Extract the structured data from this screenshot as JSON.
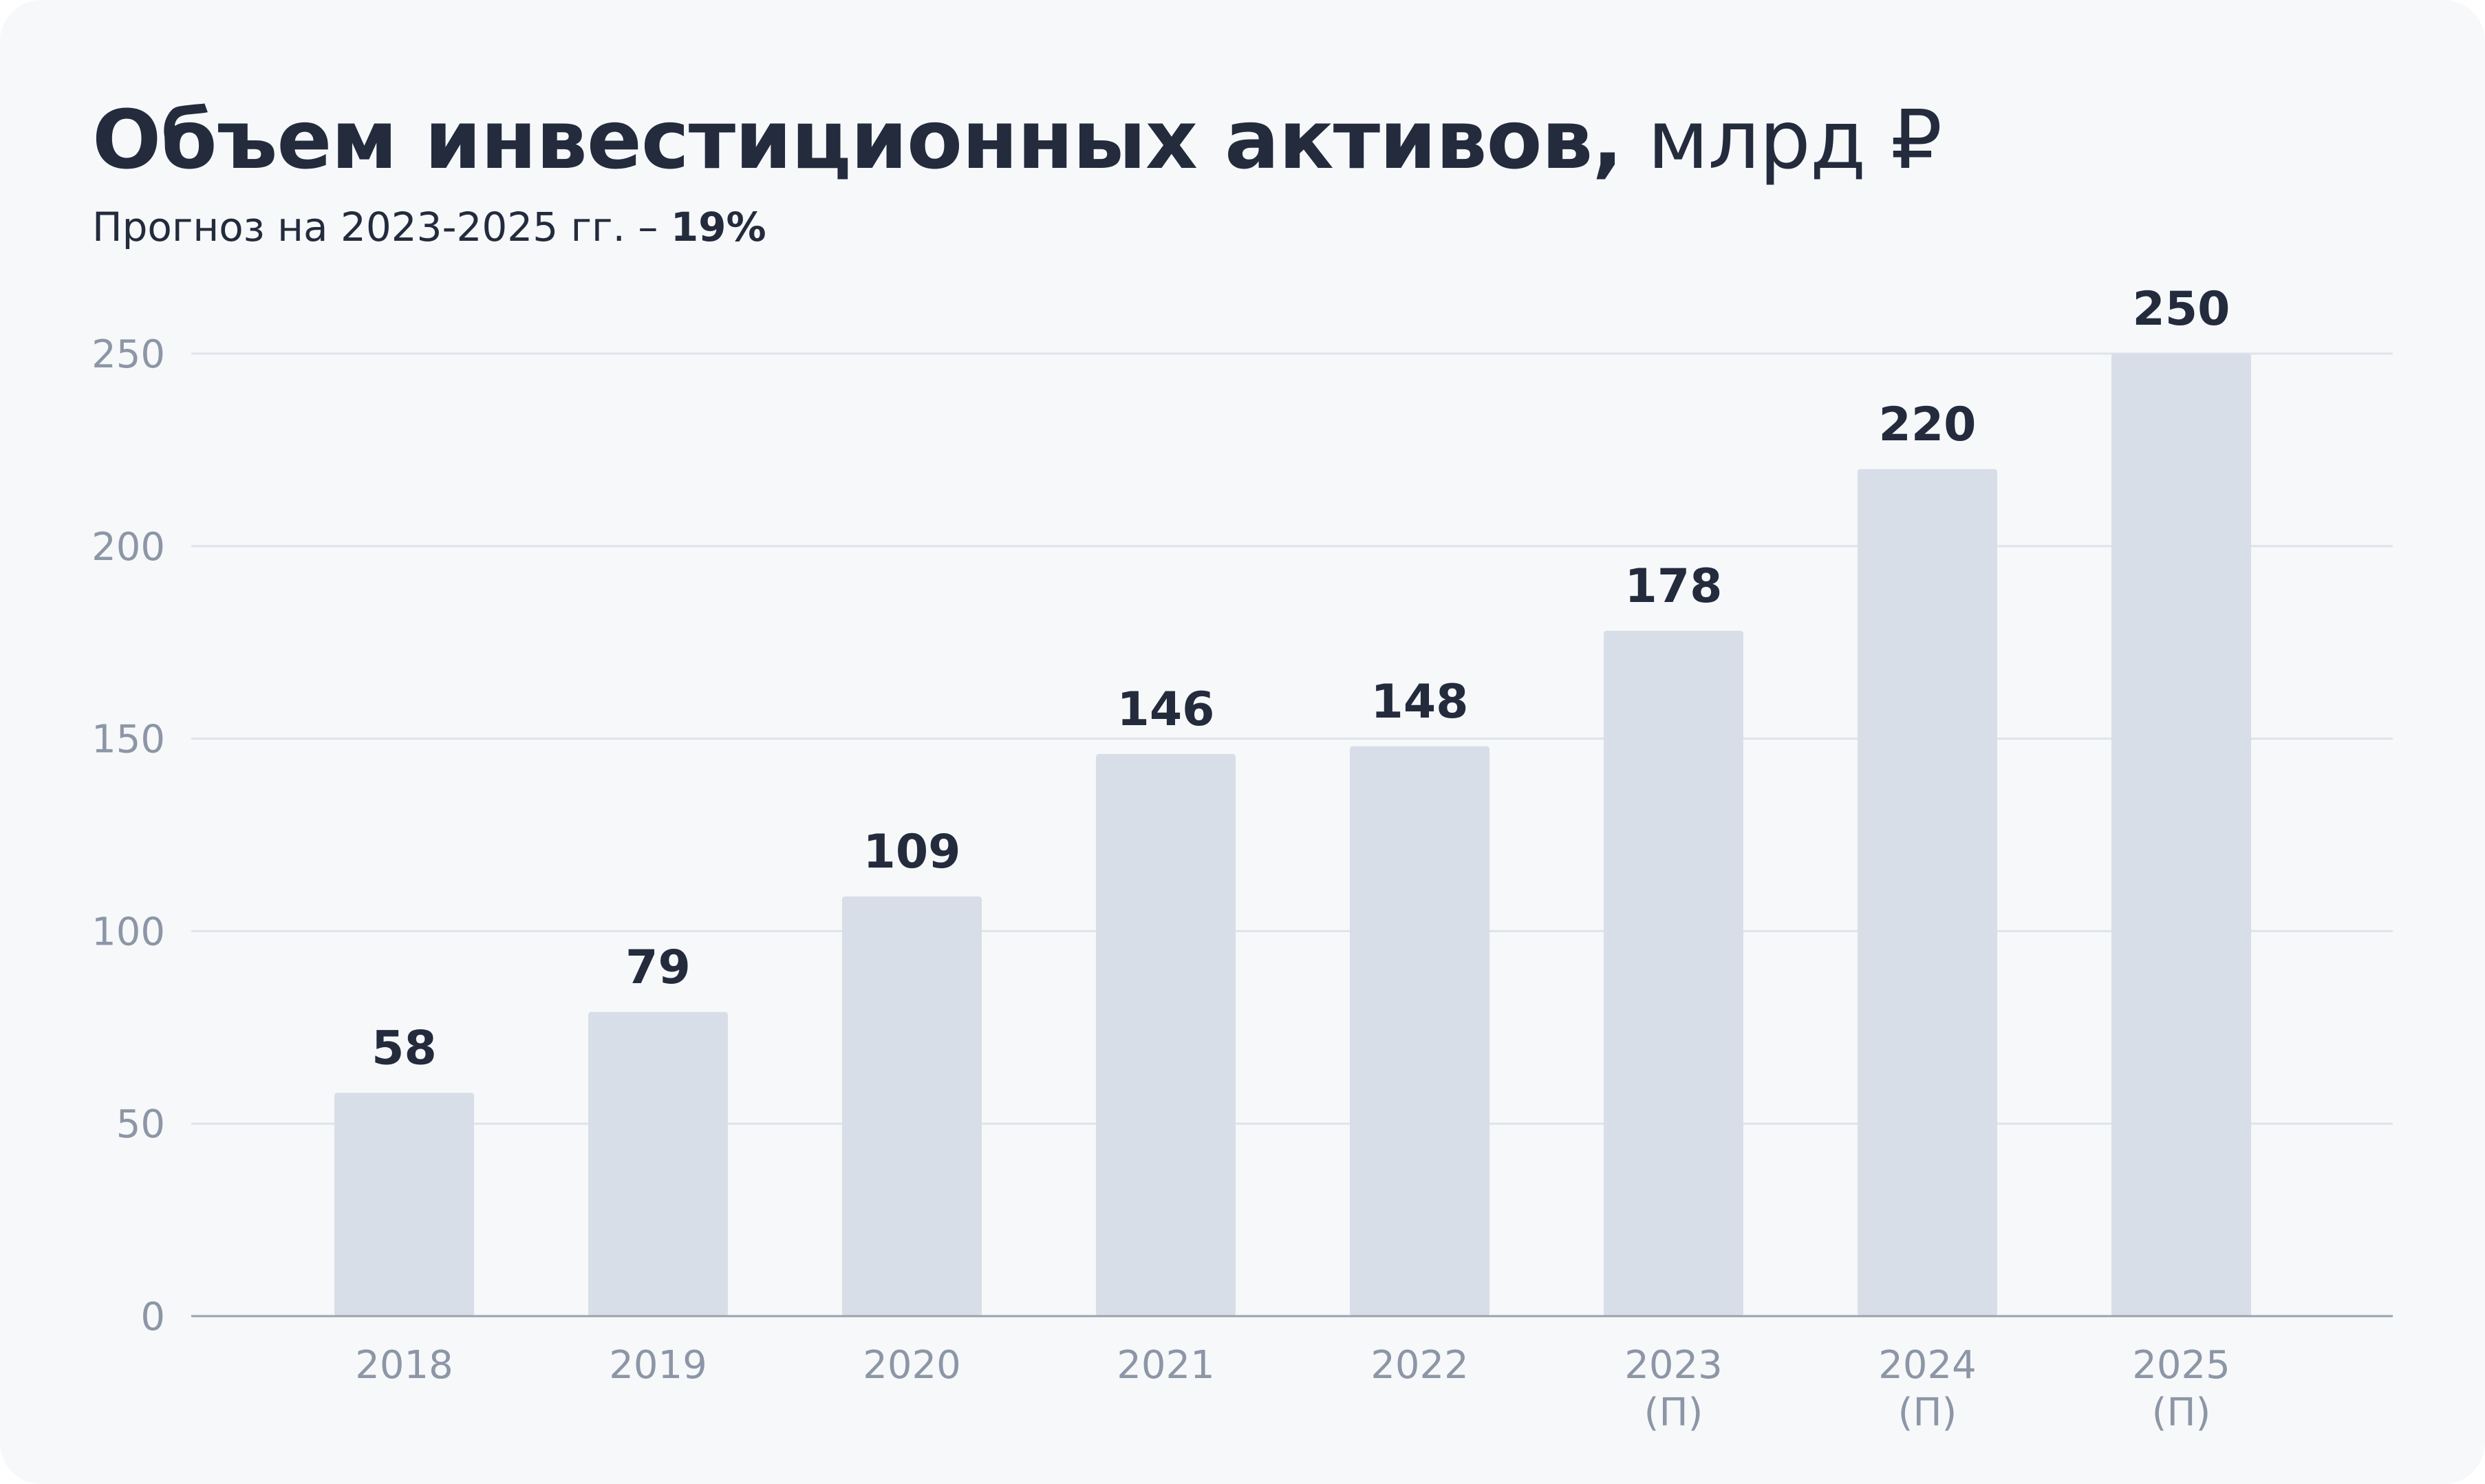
{
  "title": {
    "main": "Объем инвестиционных активов,",
    "unit": "млрд ₽"
  },
  "subtitle": {
    "prefix": "Прогноз на 2023-2025 гг. –",
    "value": "19%"
  },
  "chart_data": {
    "type": "bar",
    "categories": [
      "2018",
      "2019",
      "2020",
      "2021",
      "2022",
      "2023",
      "2024",
      "2025"
    ],
    "category_notes": [
      "",
      "",
      "",
      "",
      "",
      "(П)",
      "(П)",
      "(П)"
    ],
    "values": [
      58,
      79,
      109,
      146,
      148,
      178,
      220,
      250
    ],
    "data_labels": [
      "58",
      "79",
      "109",
      "146",
      "148",
      "178",
      "220",
      "250"
    ],
    "yticks": [
      0,
      50,
      100,
      150,
      200,
      250
    ],
    "ylim": [
      0,
      250
    ],
    "grid": true,
    "legend": "none",
    "colors": {
      "bar": "#d8dee8",
      "grid": "#dfe3ea",
      "axis": "#9aa2ae",
      "label": "#232b3d",
      "tick": "#8d96a6"
    }
  }
}
